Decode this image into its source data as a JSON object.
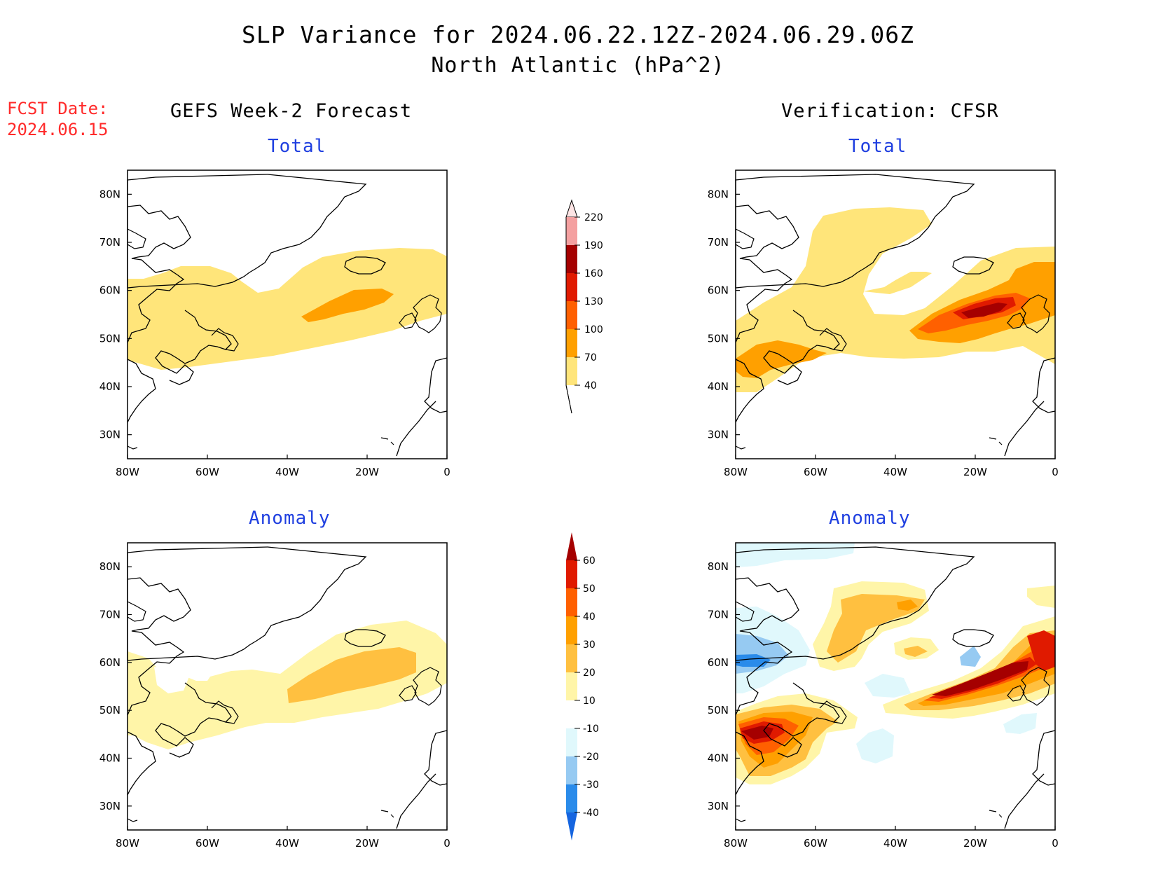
{
  "figure": {
    "title_line_1": "SLP Variance for 2024.06.22.12Z-2024.06.29.06Z",
    "title_line_2": "North Atlantic (hPa^2)",
    "fcst_label_line_1": "FCST Date:",
    "fcst_label_line_2": "2024.06.15",
    "left_column_title": "GEFS Week-2 Forecast",
    "right_column_title": "Verification: CFSR"
  },
  "panels": {
    "forecast_total": {
      "title": "Total"
    },
    "verification_total": {
      "title": "Total"
    },
    "forecast_anomaly": {
      "title": "Anomaly"
    },
    "verification_anomaly": {
      "title": "Anomaly"
    }
  },
  "axes": {
    "lon_ticks": [
      "80W",
      "60W",
      "40W",
      "20W",
      "0"
    ],
    "lat_ticks": [
      "80N",
      "70N",
      "60N",
      "50N",
      "40N",
      "30N"
    ],
    "lon_range": [
      -80,
      0
    ],
    "lat_range": [
      25,
      85
    ]
  },
  "colorbars": {
    "total": {
      "levels": [
        "40",
        "70",
        "100",
        "130",
        "160",
        "190",
        "220"
      ],
      "colors": [
        "#ffe57a",
        "#ffa000",
        "#ff6000",
        "#e01a00",
        "#a50000",
        "#f4a0a0",
        "#fde4e4"
      ]
    },
    "anomaly": {
      "levels": [
        "-40",
        "-30",
        "-20",
        "-10",
        "10",
        "20",
        "30",
        "40",
        "50",
        "60"
      ],
      "colors": [
        "#1565e0",
        "#2a8bea",
        "#96caf2",
        "#e0f8fc",
        "#ffffff",
        "#fff5a8",
        "#ffc040",
        "#ffa000",
        "#ff6000",
        "#e01a00",
        "#a50000"
      ]
    }
  }
}
